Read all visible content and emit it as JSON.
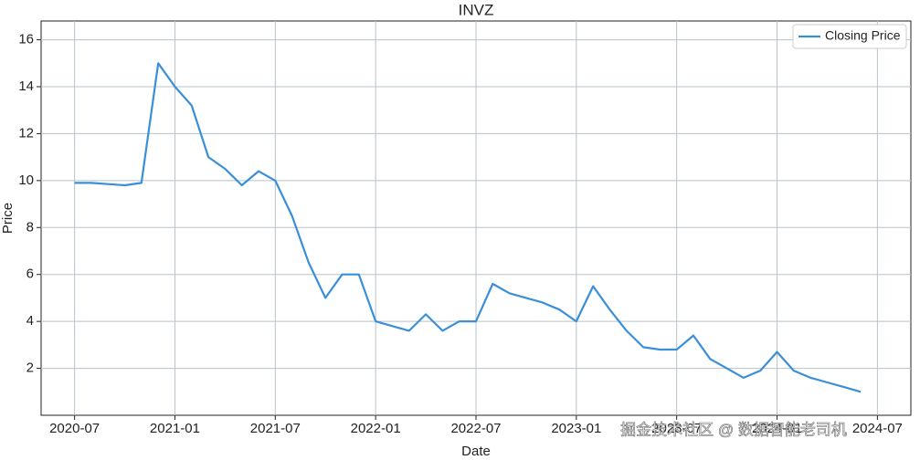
{
  "chart_data": {
    "type": "line",
    "title": "INVZ",
    "x_label": "Date",
    "y_label": "Price",
    "x": [
      "2020-07",
      "2020-08",
      "2020-09",
      "2020-10",
      "2020-11",
      "2020-12",
      "2021-01",
      "2021-02",
      "2021-03",
      "2021-04",
      "2021-05",
      "2021-06",
      "2021-07",
      "2021-08",
      "2021-09",
      "2021-10",
      "2021-11",
      "2021-12",
      "2022-01",
      "2022-02",
      "2022-03",
      "2022-04",
      "2022-05",
      "2022-06",
      "2022-07",
      "2022-08",
      "2022-09",
      "2022-10",
      "2022-11",
      "2022-12",
      "2023-01",
      "2023-02",
      "2023-03",
      "2023-04",
      "2023-05",
      "2023-06",
      "2023-07",
      "2023-08",
      "2023-09",
      "2023-10",
      "2023-11",
      "2023-12",
      "2024-01",
      "2024-02",
      "2024-03",
      "2024-04",
      "2024-05",
      "2024-06"
    ],
    "series": [
      {
        "name": "Closing Price",
        "color": "#3a8fd9",
        "values": [
          9.9,
          9.9,
          9.85,
          9.8,
          9.9,
          15.0,
          14.0,
          13.2,
          11.0,
          10.5,
          9.8,
          10.4,
          10.0,
          8.5,
          6.5,
          5.0,
          6.0,
          6.0,
          4.0,
          3.8,
          3.6,
          4.3,
          3.6,
          4.0,
          4.0,
          5.6,
          5.2,
          5.0,
          4.8,
          4.5,
          4.0,
          5.5,
          4.5,
          3.6,
          2.9,
          2.8,
          2.8,
          3.4,
          2.4,
          2.0,
          1.6,
          1.9,
          2.7,
          1.9,
          1.6,
          1.4,
          1.2,
          1.0
        ]
      }
    ],
    "xlim": [
      "2020-05",
      "2024-09"
    ],
    "xticks": [
      "2020-07",
      "2021-01",
      "2021-07",
      "2022-01",
      "2022-07",
      "2023-01",
      "2023-07",
      "2024-01",
      "2024-07"
    ],
    "ylim": [
      0,
      16.8
    ],
    "yticks": [
      2,
      4,
      6,
      8,
      10,
      12,
      14,
      16
    ],
    "grid": true,
    "legend": "upper right"
  },
  "watermark": "掘金技术社区 @ 数据智能老司机"
}
